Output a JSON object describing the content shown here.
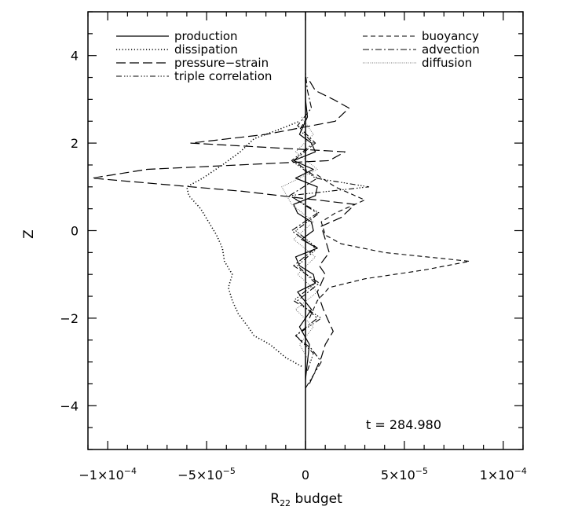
{
  "chart_data": {
    "type": "line",
    "title": "",
    "xlabel": "R",
    "xlabel_sub": "22",
    "xlabel_suffix": " budget",
    "ylabel": "Z",
    "xlim": [
      -0.00011,
      0.00011
    ],
    "ylim": [
      -5,
      5
    ],
    "x_ticks": [
      {
        "value": -0.0001,
        "mant": "−1×10",
        "exp": "−4"
      },
      {
        "value": -5e-05,
        "mant": "−5×10",
        "exp": "−5"
      },
      {
        "value": 0,
        "mant": "0",
        "exp": ""
      },
      {
        "value": 5e-05,
        "mant": "5×10",
        "exp": "−5"
      },
      {
        "value": 0.0001,
        "mant": "1×10",
        "exp": "−4"
      }
    ],
    "y_ticks": [
      -4,
      -2,
      0,
      2,
      4
    ],
    "annotation": "t = 284.980",
    "grid": false,
    "legend_position": "top",
    "legend": [
      {
        "label": "production",
        "style": "solid",
        "column": "left"
      },
      {
        "label": "dissipation",
        "style": "dotted",
        "column": "left"
      },
      {
        "label": "pressure−strain",
        "style": "longdash",
        "column": "left"
      },
      {
        "label": "triple correlation",
        "style": "dashdotdotdot",
        "column": "left"
      },
      {
        "label": "buoyancy",
        "style": "dashed",
        "column": "right"
      },
      {
        "label": "advection",
        "style": "dashdot",
        "column": "right"
      },
      {
        "label": "diffusion",
        "style": "fine-dotted",
        "column": "right"
      }
    ],
    "series": [
      {
        "name": "production",
        "style": "solid",
        "z": [
          -3.4,
          -3.0,
          -2.6,
          -2.2,
          -1.8,
          -1.4,
          -1.2,
          -1.0,
          -0.8,
          -0.6,
          -0.4,
          -0.2,
          0.0,
          0.2,
          0.4,
          0.6,
          0.8,
          1.0,
          1.2,
          1.4,
          1.6,
          1.8,
          2.0,
          2.2,
          2.6,
          3.0,
          3.5
        ],
        "x": [
          0,
          1e-06,
          2e-06,
          -3e-06,
          3e-06,
          -4e-06,
          5e-06,
          4e-06,
          -3e-06,
          -5e-06,
          6e-06,
          -2e-06,
          4e-06,
          3e-06,
          -4e-06,
          -6e-06,
          5e-06,
          6e-06,
          -5e-06,
          4e-06,
          -6e-06,
          5e-06,
          3e-06,
          -3e-06,
          1e-06,
          0,
          0
        ]
      },
      {
        "name": "dissipation",
        "style": "dotted",
        "z": [
          -3.1,
          -2.9,
          -2.6,
          -2.4,
          -2.2,
          -1.9,
          -1.6,
          -1.3,
          -1.0,
          -0.7,
          -0.4,
          -0.1,
          0.2,
          0.5,
          0.8,
          1.0,
          1.2,
          1.5,
          1.8,
          2.1,
          2.3,
          2.5
        ],
        "x": [
          -2e-06,
          -1e-05,
          -1.8e-05,
          -2.6e-05,
          -2.9e-05,
          -3.4e-05,
          -3.7e-05,
          -3.9e-05,
          -3.7e-05,
          -4.1e-05,
          -4.2e-05,
          -4.5e-05,
          -4.9e-05,
          -5.3e-05,
          -5.9e-05,
          -6e-05,
          -5.2e-05,
          -4.2e-05,
          -3.3e-05,
          -2.6e-05,
          -1.4e-05,
          -3e-06
        ]
      },
      {
        "name": "pressure−strain",
        "style": "longdash",
        "z": [
          -3.5,
          -3.2,
          -2.9,
          -2.6,
          -2.3,
          -2.1,
          -1.8,
          -1.4,
          -1.0,
          -0.8,
          -0.5,
          -0.2,
          0.1,
          0.3,
          0.6,
          0.9,
          1.2,
          1.4,
          1.6,
          1.8,
          2.0,
          2.2,
          2.5,
          2.8,
          3.0,
          3.2,
          3.5
        ],
        "x": [
          2e-06,
          5e-06,
          8e-06,
          1e-05,
          1.4e-05,
          1.2e-05,
          9e-06,
          6e-06,
          1e-05,
          7e-06,
          1.2e-05,
          1e-05,
          8e-06,
          1.8e-05,
          2.5e-05,
          -3.2e-05,
          -0.000108,
          -8e-05,
          1.2e-05,
          2e-05,
          -5.8e-05,
          -2e-05,
          1.5e-05,
          2.2e-05,
          1.4e-05,
          5e-06,
          1e-06
        ]
      },
      {
        "name": "triple correlation",
        "style": "dashdotdotdot",
        "z": [
          -3.2,
          -2.8,
          -2.4,
          -2.0,
          -1.6,
          -1.2,
          -0.8,
          -0.4,
          0.0,
          0.4,
          0.8,
          1.0,
          1.2,
          1.6,
          2.0,
          2.3,
          2.6
        ],
        "x": [
          1e-06,
          4e-06,
          -5e-06,
          8e-06,
          -6e-06,
          5e-06,
          -4e-06,
          6e-06,
          -5e-06,
          7e-06,
          -8e-06,
          3.2e-05,
          5e-06,
          -7e-06,
          4e-06,
          -3e-06,
          1e-06
        ]
      },
      {
        "name": "buoyancy",
        "style": "dashed",
        "z": [
          -2.0,
          -1.6,
          -1.3,
          -1.1,
          -0.9,
          -0.7,
          -0.5,
          -0.3,
          -0.1,
          0.2,
          0.4,
          0.7,
          1.0,
          1.3
        ],
        "x": [
          2e-06,
          6e-06,
          1.2e-05,
          3e-05,
          6e-05,
          8.3e-05,
          4e-05,
          1.8e-05,
          1e-05,
          8e-06,
          1.5e-05,
          3e-05,
          1.5e-05,
          5e-06
        ]
      },
      {
        "name": "advection",
        "style": "dashdot",
        "z": [
          -3.6,
          -3.3,
          -3.0,
          -2.7,
          -2.4,
          -2.0,
          -1.6,
          -1.2,
          -0.8,
          -0.4,
          0.0,
          0.4,
          0.8,
          1.2,
          1.6,
          2.0,
          2.4,
          2.8,
          3.2,
          3.6
        ],
        "x": [
          0,
          4e-06,
          8e-06,
          3e-06,
          -5e-06,
          6e-06,
          -4e-06,
          7e-06,
          -6e-06,
          5e-06,
          -7e-06,
          6e-06,
          -8e-06,
          6e-06,
          -6e-06,
          5e-06,
          -4e-06,
          3e-06,
          1e-06,
          0
        ]
      },
      {
        "name": "diffusion",
        "style": "fine-dotted",
        "z": [
          -3.0,
          -2.6,
          -2.2,
          -1.8,
          -1.4,
          -1.0,
          -0.6,
          -0.2,
          0.2,
          0.6,
          1.0,
          1.4,
          1.8,
          2.2,
          2.6
        ],
        "x": [
          2e-06,
          -3e-06,
          4e-06,
          -5e-06,
          6e-06,
          -4e-06,
          5e-06,
          -6e-06,
          4e-06,
          -7e-06,
          -1.2e-05,
          6e-06,
          -5e-06,
          4e-06,
          -2e-06
        ]
      }
    ]
  }
}
